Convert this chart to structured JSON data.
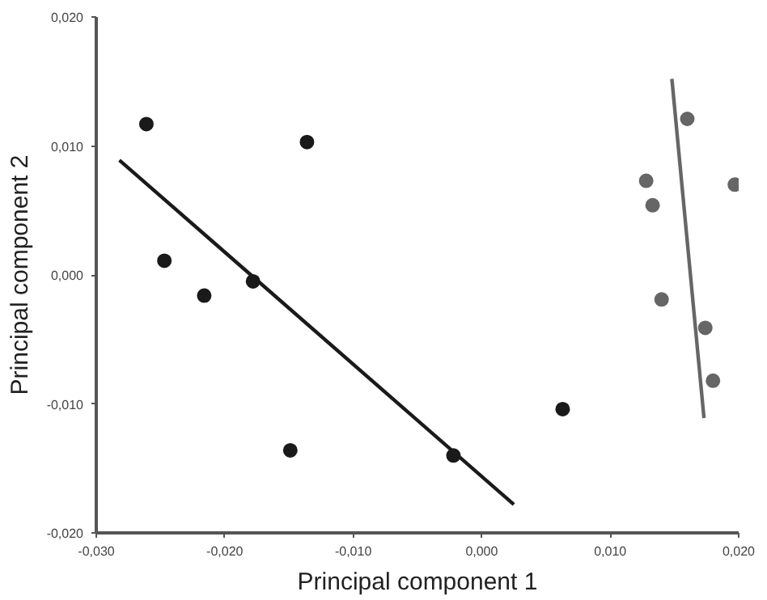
{
  "chart_data": {
    "type": "scatter",
    "xlabel": "Principal component 1",
    "ylabel": "Principal component 2",
    "xlim": [
      -0.03,
      0.02
    ],
    "ylim": [
      -0.02,
      0.02
    ],
    "xticks": [
      {
        "value": -0.03,
        "label": "-0,030"
      },
      {
        "value": -0.02,
        "label": "-0,020"
      },
      {
        "value": -0.01,
        "label": "-0,010"
      },
      {
        "value": 0,
        "label": "0,000"
      },
      {
        "value": 0.01,
        "label": "0,010"
      },
      {
        "value": 0.02,
        "label": "0,020"
      }
    ],
    "yticks": [
      {
        "value": -0.02,
        "label": "-0,020"
      },
      {
        "value": -0.01,
        "label": "-0,010"
      },
      {
        "value": 0,
        "label": "0,000"
      },
      {
        "value": 0.01,
        "label": "0,010"
      },
      {
        "value": 0.02,
        "label": "0,020"
      }
    ],
    "grid": false,
    "series": [
      {
        "marker": "circle",
        "color": "#1a1a1a",
        "x": [
          -0.0261,
          -0.0136,
          -0.0247,
          -0.0216,
          -0.0178,
          -0.0149,
          -0.0022,
          0.0063
        ],
        "values": [
          0.0117,
          0.0103,
          0.0011,
          -0.0016,
          -0.0005,
          -0.0136,
          -0.014,
          -0.0104
        ]
      },
      {
        "marker": "circle",
        "color": "#666666",
        "x": [
          0.016,
          0.0128,
          0.0133,
          0.0197,
          0.014,
          0.0174,
          0.018
        ],
        "values": [
          0.0121,
          0.0073,
          0.0054,
          0.007,
          -0.0019,
          -0.0041,
          -0.0082
        ]
      },
      {
        "type": "line",
        "color": "#1a1a1a",
        "x": [
          -0.0282,
          0.0025
        ],
        "values": [
          0.0089,
          -0.0178
        ]
      },
      {
        "type": "line",
        "color": "#666666",
        "x": [
          0.0148,
          0.0173
        ],
        "values": [
          0.0152,
          -0.0111
        ]
      }
    ]
  }
}
